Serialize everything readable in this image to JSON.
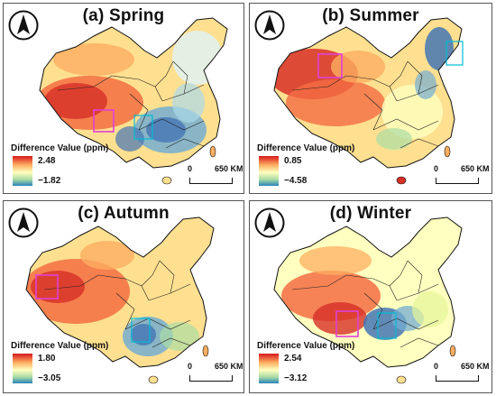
{
  "legend_title": "Difference Value (ppm)",
  "scale_bar": {
    "start": "0",
    "end": "650 KM"
  },
  "north_icon": "north-arrow-icon",
  "colors": {
    "high": "#d7191c",
    "mid": "#ffffbf",
    "low": "#2b83ba",
    "highlight": "#e040d8"
  },
  "panels": [
    {
      "title": "(a) Spring",
      "legend_max": "2.48",
      "legend_min": "−1.82"
    },
    {
      "title": "(b) Summer",
      "legend_max": "0.85",
      "legend_min": "−4.58"
    },
    {
      "title": "(c) Autumn",
      "legend_max": "1.80",
      "legend_min": "−3.05"
    },
    {
      "title": "(d) Winter",
      "legend_max": "2.54",
      "legend_min": "−3.12"
    }
  ]
}
